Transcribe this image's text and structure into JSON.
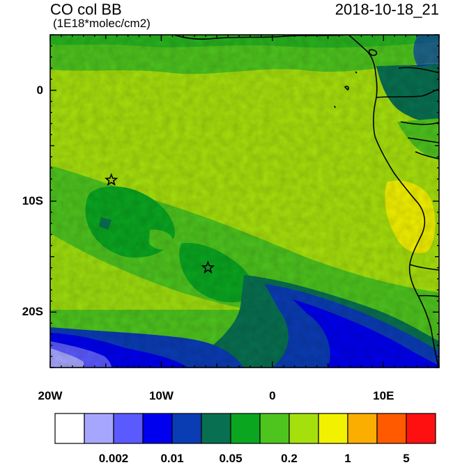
{
  "header": {
    "title": "CO col BB",
    "units": "(1E18*molec/cm2)",
    "datetime": "2018-10-18_21"
  },
  "map": {
    "lon_range": [
      -20,
      15
    ],
    "lat_range": [
      -25,
      5
    ],
    "x_ticks": [
      {
        "value": -20,
        "label": "20W"
      },
      {
        "value": -10,
        "label": "10W"
      },
      {
        "value": 0,
        "label": "0"
      },
      {
        "value": 10,
        "label": "10E"
      }
    ],
    "y_ticks": [
      {
        "value": 0,
        "label": "0"
      },
      {
        "value": -10,
        "label": "10S"
      },
      {
        "value": -20,
        "label": "20S"
      }
    ],
    "markers": [
      {
        "type": "star",
        "lon": -14.5,
        "lat": -8.1
      },
      {
        "type": "star",
        "lon": -5.8,
        "lat": -16.0
      }
    ]
  },
  "colorbar": {
    "colors": [
      "#ffffff",
      "#a6a6ff",
      "#5a5aff",
      "#0000ee",
      "#0a3cb4",
      "#087050",
      "#0aa620",
      "#4ec41e",
      "#a6e00c",
      "#f2f200",
      "#fbae00",
      "#ff5a00",
      "#ff1010"
    ],
    "labels": [
      {
        "index": 2,
        "label": "0.002"
      },
      {
        "index": 4,
        "label": "0.01"
      },
      {
        "index": 6,
        "label": "0.05"
      },
      {
        "index": 8,
        "label": "0.2"
      },
      {
        "index": 10,
        "label": "1"
      },
      {
        "index": 12,
        "label": "5"
      }
    ]
  }
}
